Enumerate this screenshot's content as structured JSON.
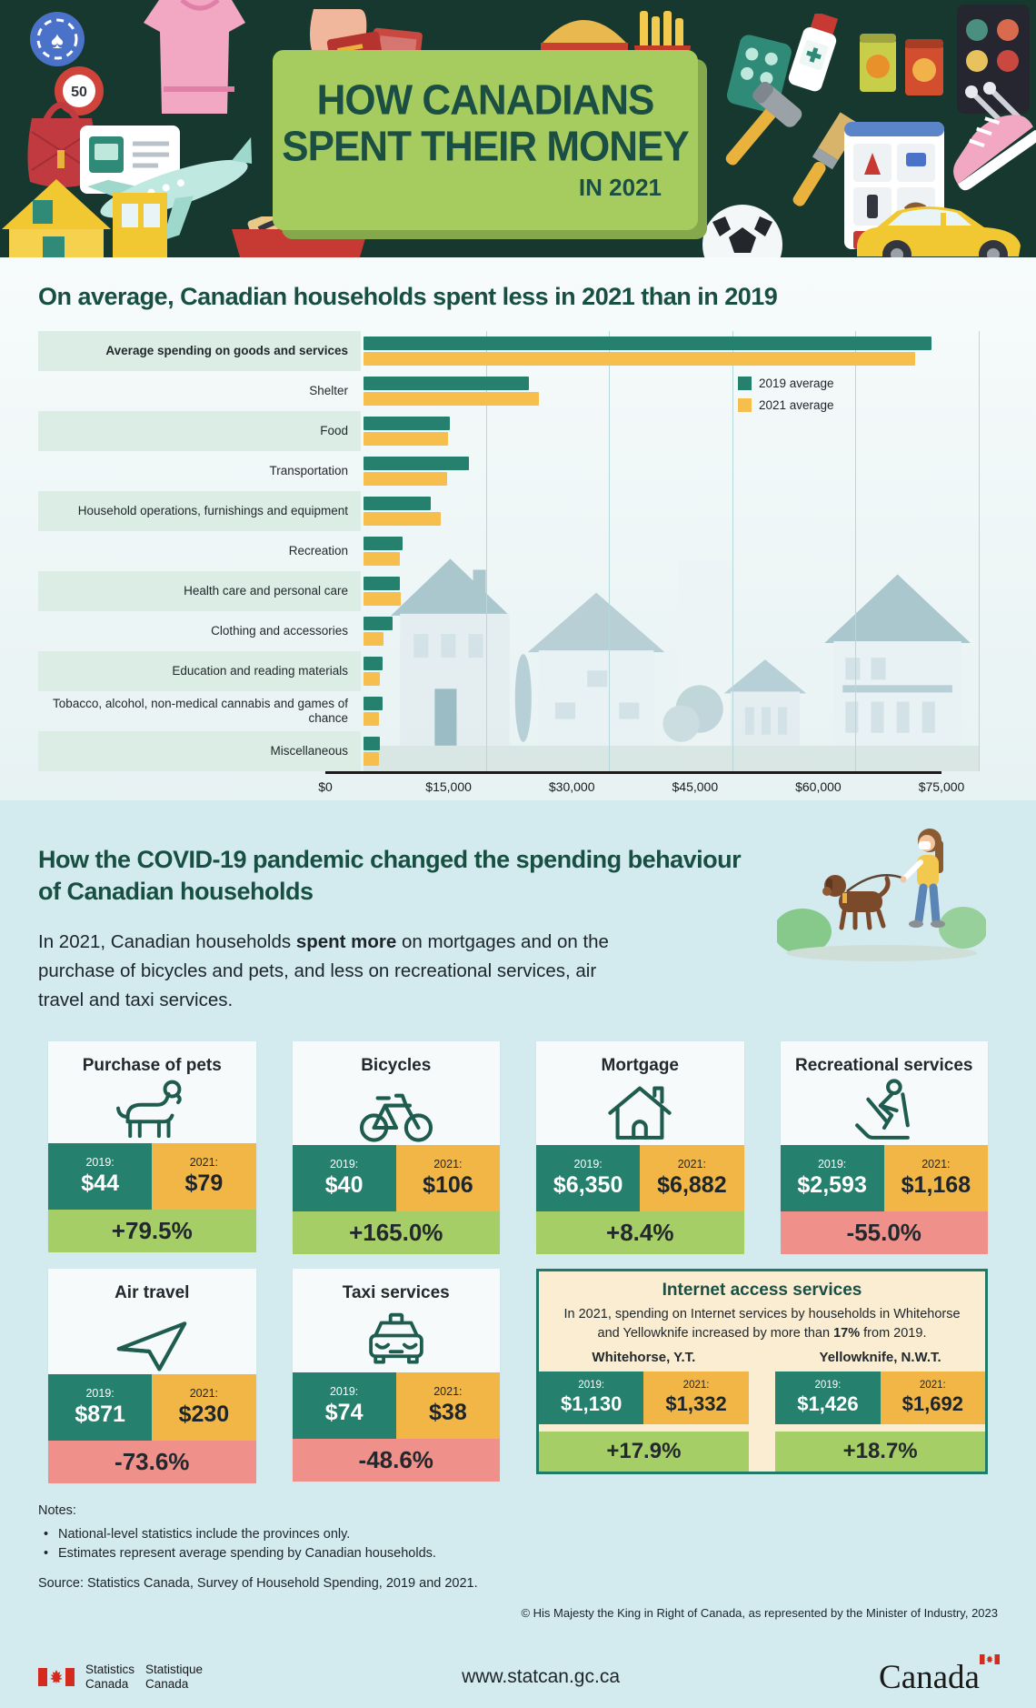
{
  "header": {
    "title_line1": "HOW CANADIANS",
    "title_line2": "SPENT THEIR MONEY",
    "title_line3": "IN 2021",
    "decor": {
      "chip_label": "50",
      "coin_symbol": "$"
    }
  },
  "spending_chart": {
    "heading": "On average, Canadian households spent less in 2021 than in 2019",
    "legend": [
      {
        "label": "2019 average"
      },
      {
        "label": "2021 average"
      }
    ]
  },
  "chart_data": {
    "type": "bar",
    "orientation": "horizontal",
    "title": "On average, Canadian households spent less in 2021 than in 2019",
    "categories": [
      "Average spending on goods and services",
      "Shelter",
      "Food",
      "Transportation",
      "Household operations, furnishings and equipment",
      "Recreation",
      "Health care and personal care",
      "Clothing and accessories",
      "Education and reading materials",
      "Tobacco, alcohol, non-medical cannabis and games of chance",
      "Miscellaneous"
    ],
    "series": [
      {
        "name": "2019 average",
        "color": "#26806E",
        "values": [
          69400,
          20200,
          10500,
          12900,
          8200,
          4800,
          4400,
          3500,
          2300,
          2300,
          2000
        ]
      },
      {
        "name": "2021 average",
        "color": "#F6BF4D",
        "values": [
          67400,
          21400,
          10300,
          10200,
          9400,
          4400,
          4500,
          2500,
          2000,
          1900,
          1900
        ]
      }
    ],
    "x_ticks": [
      "$0",
      "$15,000",
      "$30,000",
      "$45,000",
      "$60,000",
      "$75,000"
    ],
    "xlim": [
      0,
      75000
    ],
    "grid": true,
    "legend_position": "right"
  },
  "covid_section": {
    "heading_line1": "How the COVID-19 pandemic changed the spending behaviour",
    "heading_line2": "of Canadian households",
    "intro": {
      "part1": "In 2021, Canadian households ",
      "bold": "spent more",
      "part2": " on mortgages and on the purchase of bicycles and pets, and less on recreational services, air travel and taxi services."
    }
  },
  "card_labels": {
    "y2019": "2019:",
    "y2021": "2021:"
  },
  "cards": [
    {
      "title": "Purchase of pets",
      "icon": "dog-icon",
      "y2019": "$44",
      "y2021": "$79",
      "change": "+79.5%",
      "change_type": "positive"
    },
    {
      "title": "Bicycles",
      "icon": "bicycle-icon",
      "y2019": "$40",
      "y2021": "$106",
      "change": "+165.0%",
      "change_type": "positive"
    },
    {
      "title": "Mortgage",
      "icon": "house-icon",
      "y2019": "$6,350",
      "y2021": "$6,882",
      "change": "+8.4%",
      "change_type": "positive"
    },
    {
      "title": "Recreational services",
      "icon": "skier-icon",
      "y2019": "$2,593",
      "y2021": "$1,168",
      "change": "-55.0%",
      "change_type": "negative"
    },
    {
      "title": "Air travel",
      "icon": "airplane-icon",
      "y2019": "$871",
      "y2021": "$230",
      "change": "-73.6%",
      "change_type": "negative"
    },
    {
      "title": "Taxi services",
      "icon": "taxi-icon",
      "y2019": "$74",
      "y2021": "$38",
      "change": "-48.6%",
      "change_type": "negative"
    }
  ],
  "internet_card": {
    "title": "Internet access services",
    "paragraph": {
      "part1": "In 2021, spending on Internet services by households in Whitehorse and Yellowknife increased by more than ",
      "bold": "17%",
      "part2": " from 2019."
    },
    "locations": [
      {
        "name": "Whitehorse, Y.T.",
        "y2019": "$1,130",
        "y2021": "$1,332",
        "change": "+17.9%"
      },
      {
        "name": "Yellowknife, N.W.T.",
        "y2019": "$1,426",
        "y2021": "$1,692",
        "change": "+18.7%"
      }
    ]
  },
  "notes": {
    "label": "Notes:",
    "items": [
      "National-level statistics include the provinces only.",
      "Estimates represent average spending by Canadian households."
    ],
    "source": "Source: Statistics Canada, Survey of Household Spending, 2019 and 2021.",
    "copyright": "© His Majesty the King in Right of Canada, as represented by the Minister of Industry, 2023"
  },
  "footer": {
    "agency_en_line1": "Statistics",
    "agency_en_line2": "Canada",
    "agency_fr_line1": "Statistique",
    "agency_fr_line2": "Canada",
    "url": "www.statcan.gc.ca",
    "wordmark": "Canada"
  },
  "colors": {
    "teal": "#26806E",
    "chart_yellow": "#F6BF4D",
    "card_yellow": "#F1B646",
    "green": "#A6CE67",
    "red": "#F0908A",
    "header_bg": "#16382F",
    "panel_green": "#A6CB5F",
    "heading_teal": "#175043",
    "mint_stripe": "#DCEDE6",
    "section2_bg": "#D3EAEE",
    "cream": "#FBEDD2"
  }
}
